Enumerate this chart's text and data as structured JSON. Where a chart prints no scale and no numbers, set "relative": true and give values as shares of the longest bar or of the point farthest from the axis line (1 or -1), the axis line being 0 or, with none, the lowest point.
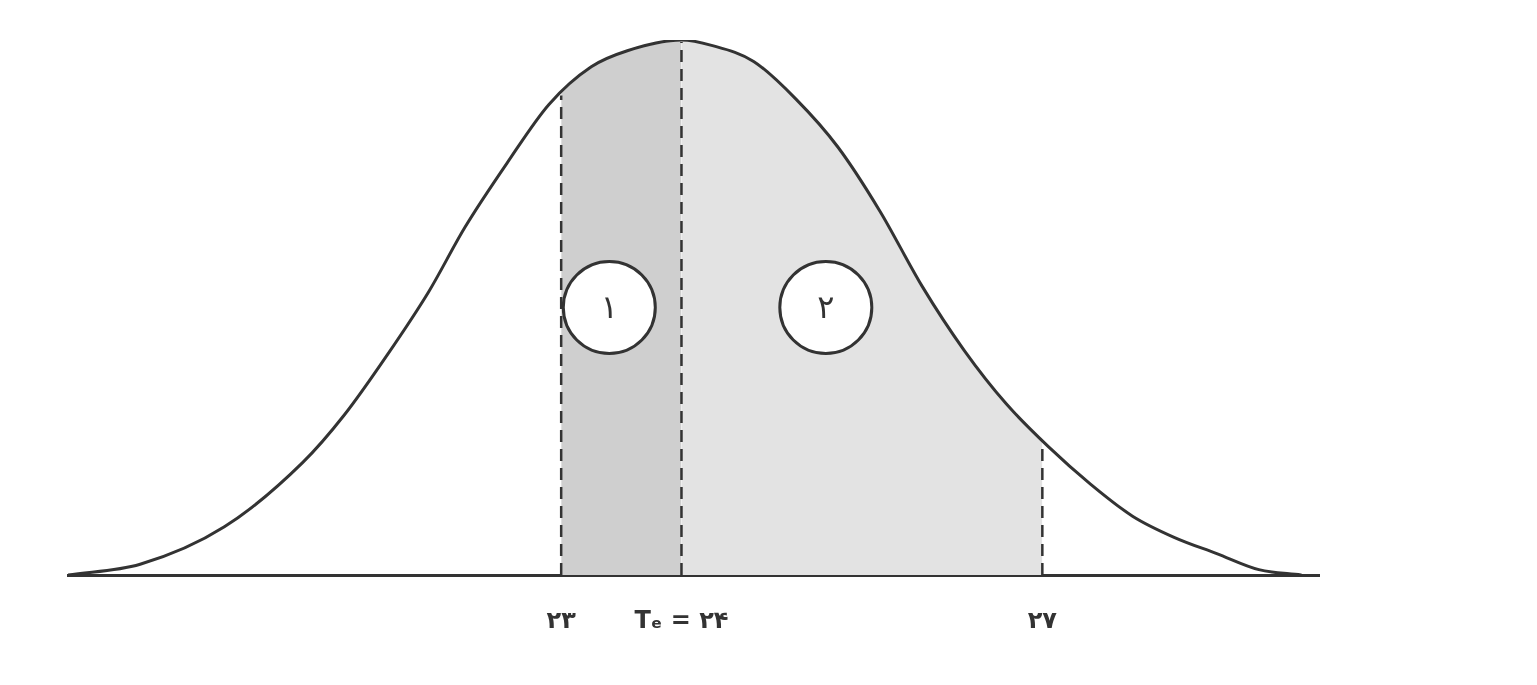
{
  "chart_data": {
    "type": "line",
    "relative": true,
    "marker": "none",
    "series": [
      {
        "color": "#333333",
        "x": [
          18.9,
          19.5,
          20.2,
          20.85,
          21.2,
          21.55,
          21.9,
          22.2,
          22.55,
          22.9,
          23.25,
          23.55,
          24,
          24.25,
          24.6,
          24.95,
          25.3,
          25.65,
          26,
          26.35,
          26.7,
          27.05,
          27.4,
          27.75,
          28.1,
          28.45,
          28.8,
          29.15
        ],
        "values": [
          0,
          0.02,
          0.09,
          0.21,
          0.3,
          0.41,
          0.53,
          0.65,
          0.77,
          0.88,
          0.95,
          0.98,
          1,
          0.99,
          0.96,
          0.89,
          0.8,
          0.68,
          0.54,
          0.42,
          0.32,
          0.24,
          0.17,
          0.11,
          0.07,
          0.04,
          0.01,
          0
        ]
      },
      {
        "type": "area",
        "color": "#cfcfcf",
        "x": [
          23,
          23.25,
          23.55,
          24
        ],
        "values": [
          0.9,
          0.95,
          0.98,
          1
        ]
      },
      {
        "type": "area",
        "color": "#e3e3e3",
        "x": [
          24,
          24.25,
          24.6,
          24.95,
          25.3,
          25.65,
          26,
          26.35,
          26.7,
          27
        ],
        "values": [
          1,
          0.99,
          0.96,
          0.89,
          0.8,
          0.68,
          0.54,
          0.42,
          0.32,
          0.25
        ]
      }
    ],
    "xlim": [
      18.9,
      29.3
    ],
    "xticks": [
      {
        "value": 23,
        "label": "۲۳"
      },
      {
        "value": 24,
        "label": "Tₑ = ۲۴"
      },
      {
        "value": 27,
        "label": "۲۷"
      }
    ],
    "ref_lines": [
      {
        "axis": "x",
        "value": 23,
        "line_style": "dashed",
        "color": "#333333"
      },
      {
        "axis": "x",
        "value": 24,
        "line_style": "dashed",
        "color": "#333333"
      },
      {
        "axis": "x",
        "value": 27,
        "line_style": "dashed",
        "color": "#333333"
      }
    ],
    "annotations": [
      "۱",
      "۲"
    ]
  }
}
